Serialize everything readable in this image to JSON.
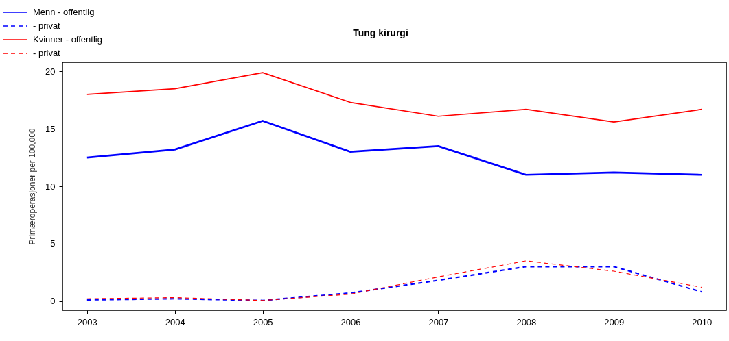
{
  "chart_data": {
    "type": "line",
    "title": "Tung kirurgi",
    "ylabel": "Primæroperasjoner per 100,000",
    "x": [
      2003,
      2004,
      2005,
      2006,
      2007,
      2008,
      2009,
      2010
    ],
    "xlim": [
      2002.72,
      2010.28
    ],
    "xticks": [
      2003,
      2004,
      2005,
      2006,
      2007,
      2008,
      2009,
      2010
    ],
    "ylim": [
      -0.8,
      20.8
    ],
    "yticks": [
      0,
      5,
      10,
      15,
      20
    ],
    "grid": false,
    "legend": "top left",
    "marker": "none",
    "series": [
      {
        "name": "Menn - offentlig",
        "color": "#0000ff",
        "line_style": "solid",
        "values": [
          12.5,
          13.2,
          15.7,
          13.0,
          13.5,
          11.0,
          11.2,
          11.0
        ]
      },
      {
        "name": "- privat",
        "color": "#0000ff",
        "line_style": "dashed",
        "values": [
          0.1,
          0.2,
          0.05,
          0.7,
          1.8,
          3.0,
          3.0,
          0.8
        ]
      },
      {
        "name": "Kvinner - offentlig",
        "color": "#ff0000",
        "line_style": "solid",
        "values": [
          18.0,
          18.5,
          19.9,
          17.3,
          16.1,
          16.7,
          15.6,
          16.7
        ]
      },
      {
        "name": "- privat",
        "color": "#ff0000",
        "line_style": "dashed",
        "values": [
          0.2,
          0.3,
          0.05,
          0.6,
          2.1,
          3.5,
          2.6,
          1.2
        ]
      }
    ]
  }
}
